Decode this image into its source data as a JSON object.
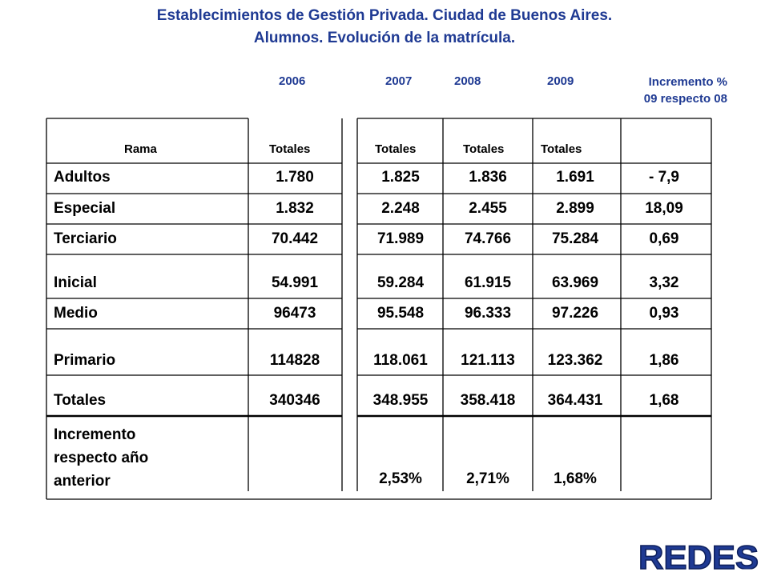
{
  "title": {
    "line1": "Establecimientos de Gestión Privada.   Ciudad de Buenos Aires.",
    "line2": "Alumnos. Evolución de la matrícula."
  },
  "years": [
    "2006",
    "2007",
    "2008",
    "2009"
  ],
  "increment_header": {
    "line1": "Incremento %",
    "line2": "09 respecto 08"
  },
  "table": {
    "headers": [
      "Rama",
      "Totales",
      "Totales",
      "Totales",
      "Totales",
      ""
    ],
    "rows": [
      {
        "rama": "Adultos",
        "values": [
          "1.780",
          "1.825",
          "1.836",
          "1.691",
          "- 7,9"
        ]
      },
      {
        "rama": "Especial",
        "values": [
          "1.832",
          "2.248",
          "2.455",
          "2.899",
          "18,09"
        ]
      },
      {
        "rama": "Terciario",
        "values": [
          "70.442",
          "71.989",
          "74.766",
          "75.284",
          "0,69"
        ]
      },
      {
        "rama": "Inicial",
        "values": [
          "54.991",
          "59.284",
          "61.915",
          "63.969",
          "3,32"
        ]
      },
      {
        "rama": "Medio",
        "values": [
          "96473",
          "95.548",
          "96.333",
          "97.226",
          "0,93"
        ]
      },
      {
        "rama": "Primario",
        "values": [
          "114828",
          "118.061",
          "121.113",
          "123.362",
          "1,86"
        ]
      },
      {
        "rama": "Totales",
        "values": [
          "340346",
          "348.955",
          "358.418",
          "364.431",
          "1,68"
        ]
      }
    ],
    "increment_row": {
      "label_lines": [
        "Incremento",
        "respecto año",
        "anterior"
      ],
      "values": [
        "",
        "2,53%",
        "2,71%",
        "1,68%",
        ""
      ]
    }
  },
  "logo": {
    "text": "REDES",
    "color": "#1f3a93"
  }
}
